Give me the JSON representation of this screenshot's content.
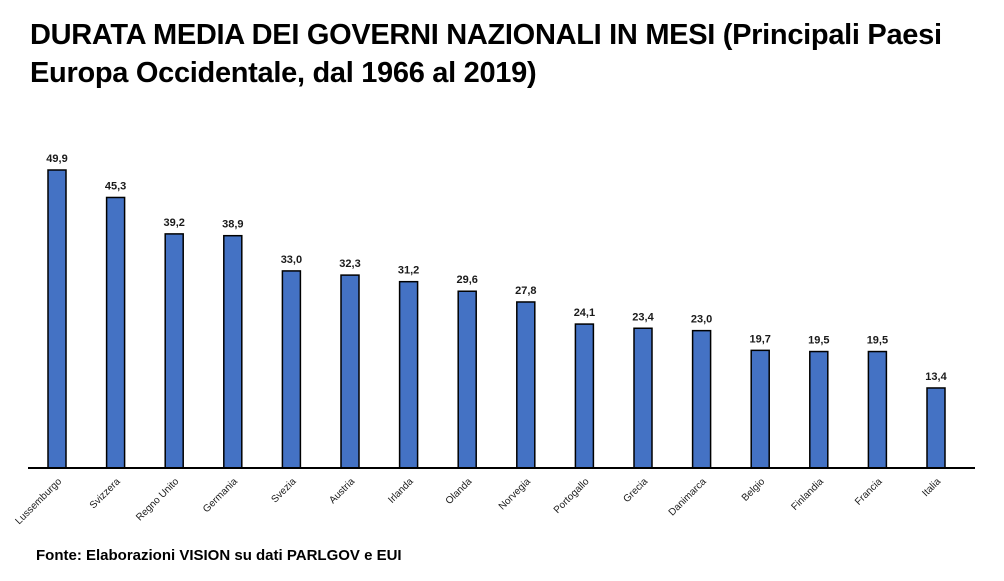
{
  "title": "DURATA MEDIA DEI GOVERNI NAZIONALI IN MESI (Principali Paesi Europa Occidentale, dal 1966 al 2019)",
  "source": "Fonte: Elaborazioni VISION su dati PARLGOV e EUI",
  "chart_data": {
    "type": "bar",
    "title": "DURATA MEDIA DEI GOVERNI NAZIONALI IN MESI (Principali Paesi Europa Occidentale, dal 1966 al 2019)",
    "xlabel": "",
    "ylabel": "",
    "ylim": [
      0,
      50
    ],
    "grid": false,
    "bar_color": "#4472c4",
    "categories": [
      "Lussemburgo",
      "Svizzera",
      "Regno Unito",
      "Germania",
      "Svezia",
      "Austria",
      "Irlanda",
      "Olanda",
      "Norvegia",
      "Portogallo",
      "Grecia",
      "Danimarca",
      "Belgio",
      "Finlandia",
      "Francia",
      "Italia"
    ],
    "values": [
      49.9,
      45.3,
      39.2,
      38.9,
      33.0,
      32.3,
      31.2,
      29.6,
      27.8,
      24.1,
      23.4,
      23.0,
      19.7,
      19.5,
      19.5,
      13.4
    ],
    "data_labels": [
      "49,9",
      "45,3",
      "39,2",
      "38,9",
      "33,0",
      "32,3",
      "31,2",
      "29,6",
      "27,8",
      "24,1",
      "23,4",
      "23,0",
      "19,7",
      "19,5",
      "19,5",
      "13,4"
    ]
  }
}
